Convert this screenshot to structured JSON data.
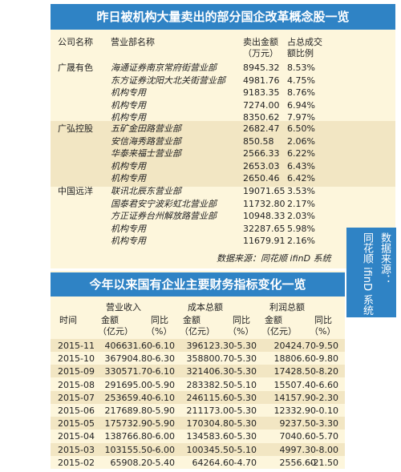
{
  "table1": {
    "title": "昨日被机构大量卖出的部分国企改革概念股一览",
    "headers": [
      [
        "公司名称"
      ],
      [
        "营业部名称"
      ],
      [
        "卖出金额",
        "（万元）"
      ],
      [
        "占总成交",
        "额比例"
      ]
    ],
    "groups": [
      {
        "company": "广晟有色",
        "rows": [
          [
            "海通证券南京常府街营业部",
            "8945.32",
            "8.53%"
          ],
          [
            "东方证券沈阳大北关街营业部",
            "4981.76",
            "4.75%"
          ],
          [
            "机构专用",
            "9183.35",
            "8.76%"
          ],
          [
            "机构专用",
            "7274.00",
            "6.94%"
          ],
          [
            "机构专用",
            "8350.62",
            "7.97%"
          ]
        ]
      },
      {
        "company": "广弘控股",
        "rows": [
          [
            "五矿金田路营业部",
            "2682.47",
            "6.50%"
          ],
          [
            "安信海秀路营业部",
            "850.58",
            "2.06%"
          ],
          [
            "华泰来福士营业部",
            "2566.33",
            "6.22%"
          ],
          [
            "机构专用",
            "2653.03",
            "6.43%"
          ],
          [
            "机构专用",
            "2650.46",
            "6.42%"
          ]
        ]
      },
      {
        "company": "中国远洋",
        "rows": [
          [
            "联讯北辰东营业部",
            "19071.65",
            "3.53%"
          ],
          [
            "国泰君安宁波彩虹北营业部",
            "11732.80",
            "2.17%"
          ],
          [
            "方正证券台州解放路营业部",
            "10948.33",
            "2.03%"
          ],
          [
            "机构专用",
            "32287.65",
            "5.98%"
          ],
          [
            "机构专用",
            "11679.91",
            "2.16%"
          ]
        ]
      }
    ],
    "source": "数据来源：同花顺 ifinD 系统"
  },
  "side_note": [
    "数据来源：",
    "同花顺 ifinD 系统"
  ],
  "table2": {
    "title": "今年以来国有企业主要财务指标变化一览",
    "time_header": "时间",
    "groups": [
      "营业收入",
      "成本总额",
      "利润总额"
    ],
    "amount_label": "金额",
    "amount_unit": "（亿元）",
    "yoy_label": "同比",
    "yoy_unit": "（%）",
    "rows": [
      [
        "2015-11",
        "406631.60",
        "-6.10",
        "396123.30",
        "-5.30",
        "20424.70",
        "-9.50"
      ],
      [
        "2015-10",
        "367904.80",
        "-6.30",
        "358800.70",
        "-5.30",
        "18806.60",
        "-9.80"
      ],
      [
        "2015-09",
        "330571.70",
        "-6.10",
        "321406.30",
        "-5.30",
        "17428.50",
        "-8.20"
      ],
      [
        "2015-08",
        "291695.00",
        "-5.90",
        "283382.50",
        "-5.10",
        "15507.40",
        "-6.60"
      ],
      [
        "2015-07",
        "253659.40",
        "-6.10",
        "246115.60",
        "-5.30",
        "14157.90",
        "-2.30"
      ],
      [
        "2015-06",
        "217689.80",
        "-5.90",
        "211173.00",
        "-5.30",
        "12332.90",
        "-0.10"
      ],
      [
        "2015-05",
        "175732.90",
        "-5.90",
        "170304.80",
        "-5.30",
        "9237.50",
        "-3.30"
      ],
      [
        "2015-04",
        "138766.80",
        "-6.00",
        "134583.60",
        "-5.30",
        "7040.60",
        "-5.70"
      ],
      [
        "2015-03",
        "103155.50",
        "-6.00",
        "100345.50",
        "-5.10",
        "4997.30",
        "-8.00"
      ],
      [
        "2015-02",
        "65908.20",
        "-5.40",
        "64264.60",
        "-4.70",
        "2556.60",
        "-21.50"
      ]
    ]
  }
}
